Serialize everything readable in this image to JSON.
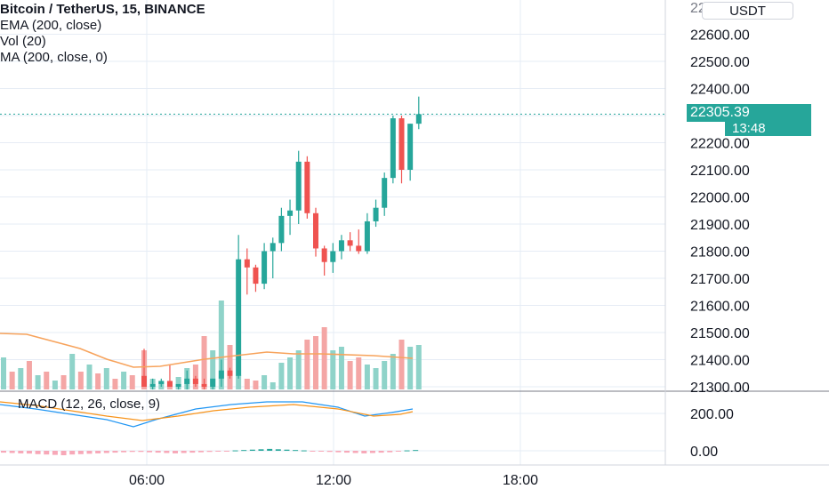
{
  "header": {
    "title": "Bitcoin / TetherUS, 15, BINANCE",
    "indicators": [
      "EMA (200, close)",
      "Vol (20)",
      "MA (200, close, 0)"
    ]
  },
  "currency_button": "USDT",
  "last_price": {
    "label": "22305.39",
    "value": 22305.39
  },
  "countdown": "13:48",
  "macd_label": "MACD (12, 26, close, 9)",
  "colors": {
    "up": "#26a69a",
    "down": "#ef5350",
    "ema": "#f7a35c",
    "signal": "#f7931a",
    "macd": "#2196f3",
    "grid": "#e6ecf5"
  },
  "chart_data": [
    {
      "type": "candlestick",
      "title": "Bitcoin / TetherUS, 15, BINANCE",
      "y_tick_labels": [
        "22600.00",
        "22500.00",
        "22400.00",
        "22300.00",
        "22200.00",
        "22100.00",
        "22000.00",
        "21900.00",
        "21800.00",
        "21700.00",
        "21600.00",
        "21500.00",
        "21400.00",
        "21300.00"
      ],
      "y_ticks": [
        22600,
        22500,
        22400,
        22300,
        22200,
        22100,
        22000,
        21900,
        21800,
        21700,
        21600,
        21500,
        21400,
        21300
      ],
      "ylim": [
        21300,
        22700
      ],
      "x_tick_labels": [
        "06:00",
        "12:00",
        "18:00"
      ],
      "candles": [
        {
          "o": 21340,
          "h": 21440,
          "l": 21300,
          "c": 21300
        },
        {
          "o": 21300,
          "h": 21330,
          "l": 21290,
          "c": 21310
        },
        {
          "o": 21310,
          "h": 21330,
          "l": 21300,
          "c": 21320
        },
        {
          "o": 21320,
          "h": 21380,
          "l": 21300,
          "c": 21300
        },
        {
          "o": 21300,
          "h": 21310,
          "l": 21290,
          "c": 21310
        },
        {
          "o": 21310,
          "h": 21360,
          "l": 21290,
          "c": 21330
        },
        {
          "o": 21330,
          "h": 21340,
          "l": 21300,
          "c": 21310
        },
        {
          "o": 21310,
          "h": 21330,
          "l": 21290,
          "c": 21300
        },
        {
          "o": 21300,
          "h": 21330,
          "l": 21290,
          "c": 21330
        },
        {
          "o": 21330,
          "h": 21400,
          "l": 21300,
          "c": 21360
        },
        {
          "o": 21360,
          "h": 21370,
          "l": 21330,
          "c": 21340
        },
        {
          "o": 21340,
          "h": 21860,
          "l": 21330,
          "c": 21770
        },
        {
          "o": 21770,
          "h": 21810,
          "l": 21640,
          "c": 21740
        },
        {
          "o": 21740,
          "h": 21750,
          "l": 21650,
          "c": 21680
        },
        {
          "o": 21680,
          "h": 21830,
          "l": 21660,
          "c": 21800
        },
        {
          "o": 21800,
          "h": 21850,
          "l": 21700,
          "c": 21830
        },
        {
          "o": 21830,
          "h": 21960,
          "l": 21800,
          "c": 21930
        },
        {
          "o": 21930,
          "h": 21990,
          "l": 21860,
          "c": 21950
        },
        {
          "o": 21950,
          "h": 22170,
          "l": 21900,
          "c": 22130
        },
        {
          "o": 22130,
          "h": 22150,
          "l": 21920,
          "c": 21940
        },
        {
          "o": 21940,
          "h": 21960,
          "l": 21780,
          "c": 21810
        },
        {
          "o": 21810,
          "h": 21820,
          "l": 21710,
          "c": 21760
        },
        {
          "o": 21760,
          "h": 21830,
          "l": 21720,
          "c": 21800
        },
        {
          "o": 21800,
          "h": 21860,
          "l": 21770,
          "c": 21840
        },
        {
          "o": 21840,
          "h": 21870,
          "l": 21800,
          "c": 21820
        },
        {
          "o": 21820,
          "h": 21880,
          "l": 21790,
          "c": 21800
        },
        {
          "o": 21800,
          "h": 21940,
          "l": 21790,
          "c": 21910
        },
        {
          "o": 21910,
          "h": 21990,
          "l": 21890,
          "c": 21960
        },
        {
          "o": 21960,
          "h": 22090,
          "l": 21930,
          "c": 22070
        },
        {
          "o": 22070,
          "h": 22300,
          "l": 22050,
          "c": 22290
        },
        {
          "o": 22290,
          "h": 22300,
          "l": 22050,
          "c": 22100
        },
        {
          "o": 22100,
          "h": 22270,
          "l": 22060,
          "c": 22270
        },
        {
          "o": 22270,
          "h": 22370,
          "l": 22250,
          "c": 22305.39
        }
      ],
      "volume": [
        0.22,
        0.06,
        0.05,
        0.05,
        0.07,
        0.12,
        0.14,
        0.3,
        0.22,
        0.5,
        0.25,
        0.08,
        0.06,
        0.05,
        0.08,
        0.04,
        0.15,
        0.18,
        0.22,
        0.28,
        0.3,
        0.35,
        0.22,
        0.24,
        0.16,
        0.18,
        0.14,
        0.12,
        0.16,
        0.2,
        0.28,
        0.24,
        0.25
      ]
    },
    {
      "type": "line",
      "title": "MACD (12, 26, close, 9)",
      "y_tick_labels": [
        "200.00",
        "0.00"
      ],
      "y_ticks": [
        200,
        0
      ],
      "ylim": [
        -50,
        300
      ]
    }
  ]
}
